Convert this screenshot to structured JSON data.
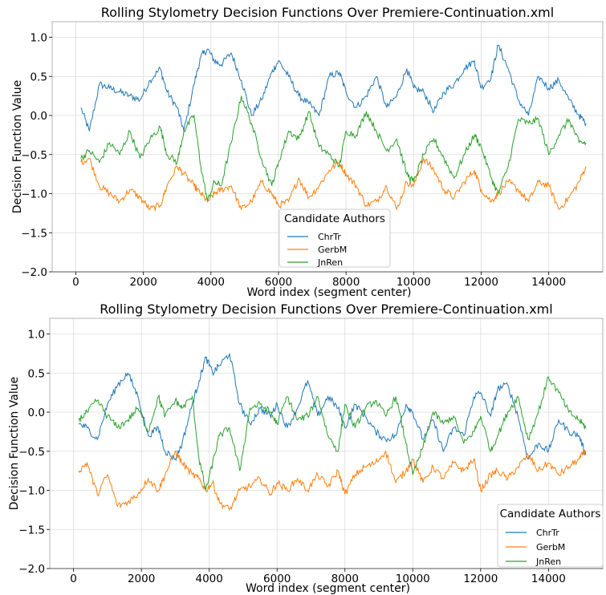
{
  "chart_data": [
    {
      "type": "line",
      "title": "Rolling Stylometry Decision Functions Over Premiere-Continuation.xml",
      "xlabel": "Word index (segment center)",
      "ylabel": "Decision Function Value",
      "xlim": [
        -700,
        15600
      ],
      "ylim": [
        -2.0,
        1.2
      ],
      "xticks": [
        0,
        2000,
        4000,
        6000,
        8000,
        10000,
        12000,
        14000
      ],
      "yticks": [
        -2.0,
        -1.5,
        -1.0,
        -0.5,
        0.0,
        0.5,
        1.0
      ],
      "xticklabels": [
        "0",
        "2000",
        "4000",
        "6000",
        "8000",
        "10000",
        "12000",
        "14000"
      ],
      "yticklabels": [
        "−2.0",
        "−1.5",
        "−1.0",
        "−0.5",
        "0.0",
        "0.5",
        "1.0"
      ],
      "grid": true,
      "legend": {
        "title": "Candidate Authors",
        "placement": "lower-center"
      },
      "series": [
        {
          "name": "ChrTr",
          "color": "#1f77b4",
          "x": [
            150,
            400,
            700,
            1000,
            1300,
            1600,
            1900,
            2200,
            2500,
            2700,
            3000,
            3200,
            3500,
            3700,
            3900,
            4100,
            4300,
            4600,
            4900,
            5200,
            5500,
            5800,
            6000,
            6300,
            6600,
            6900,
            7200,
            7500,
            7800,
            8000,
            8300,
            8600,
            8900,
            9200,
            9500,
            9800,
            10000,
            10300,
            10600,
            10900,
            11200,
            11500,
            11800,
            12000,
            12300,
            12500,
            12800,
            13100,
            13400,
            13700,
            14000,
            14300,
            14600,
            14900,
            15100
          ],
          "y": [
            0.1,
            -0.2,
            0.4,
            0.35,
            0.3,
            0.25,
            0.2,
            0.45,
            0.6,
            0.3,
            0.1,
            -0.2,
            0.4,
            0.75,
            0.85,
            0.7,
            0.65,
            0.8,
            0.45,
            0.0,
            0.2,
            0.55,
            0.7,
            0.5,
            0.25,
            0.15,
            0.0,
            0.5,
            0.55,
            0.3,
            0.1,
            0.25,
            0.5,
            0.1,
            0.25,
            0.6,
            0.35,
            0.3,
            0.05,
            0.3,
            0.4,
            0.6,
            0.7,
            0.35,
            0.5,
            0.9,
            0.6,
            0.2,
            0.0,
            0.5,
            0.35,
            0.45,
            0.2,
            0.0,
            -0.1
          ]
        },
        {
          "name": "GerbM",
          "color": "#ff7f0e",
          "x": [
            150,
            400,
            700,
            1000,
            1300,
            1600,
            1900,
            2200,
            2500,
            2700,
            3000,
            3200,
            3500,
            3700,
            3900,
            4100,
            4300,
            4600,
            4900,
            5200,
            5500,
            5800,
            6000,
            6300,
            6600,
            6900,
            7200,
            7500,
            7800,
            8000,
            8300,
            8600,
            8900,
            9200,
            9500,
            9800,
            10000,
            10300,
            10600,
            10900,
            11200,
            11500,
            11800,
            12000,
            12300,
            12500,
            12800,
            13100,
            13400,
            13700,
            14000,
            14300,
            14600,
            14900,
            15100
          ],
          "y": [
            -0.6,
            -0.55,
            -0.9,
            -1.0,
            -1.1,
            -0.95,
            -1.05,
            -1.2,
            -1.15,
            -0.9,
            -0.65,
            -0.75,
            -0.9,
            -1.0,
            -1.1,
            -1.0,
            -0.95,
            -0.9,
            -1.2,
            -1.1,
            -0.85,
            -1.0,
            -1.15,
            -1.1,
            -0.8,
            -1.05,
            -0.9,
            -0.7,
            -0.6,
            -0.75,
            -0.9,
            -1.15,
            -1.1,
            -0.9,
            -1.2,
            -0.85,
            -0.9,
            -0.55,
            -0.7,
            -0.95,
            -1.05,
            -0.85,
            -0.7,
            -0.95,
            -1.1,
            -1.0,
            -0.85,
            -0.95,
            -1.1,
            -0.85,
            -0.9,
            -1.2,
            -1.05,
            -0.85,
            -0.65
          ]
        },
        {
          "name": "JnRen",
          "color": "#2ca02c",
          "x": [
            150,
            400,
            700,
            1000,
            1300,
            1600,
            1900,
            2200,
            2500,
            2700,
            3000,
            3200,
            3500,
            3700,
            3900,
            4100,
            4300,
            4600,
            4900,
            5200,
            5500,
            5800,
            6000,
            6300,
            6600,
            6900,
            7200,
            7500,
            7800,
            8000,
            8300,
            8600,
            8900,
            9200,
            9500,
            9800,
            10000,
            10300,
            10600,
            10900,
            11200,
            11500,
            11800,
            12000,
            12300,
            12500,
            12800,
            13100,
            13400,
            13700,
            14000,
            14300,
            14600,
            14900,
            15100
          ],
          "y": [
            -0.55,
            -0.45,
            -0.6,
            -0.35,
            -0.5,
            -0.2,
            -0.55,
            -0.3,
            -0.15,
            -0.5,
            -0.6,
            -0.2,
            0.0,
            -0.65,
            -1.1,
            -0.85,
            -0.9,
            -0.35,
            0.25,
            -0.1,
            -0.55,
            -0.9,
            -0.6,
            -0.2,
            -0.3,
            0.05,
            -0.4,
            -0.5,
            -0.65,
            -0.2,
            -0.25,
            0.05,
            -0.2,
            -0.45,
            -0.3,
            -0.75,
            -0.85,
            -0.5,
            -0.3,
            -0.55,
            -0.8,
            -0.5,
            -0.25,
            -0.4,
            -0.8,
            -1.0,
            -0.65,
            -0.05,
            -0.1,
            -0.05,
            -0.5,
            -0.25,
            -0.05,
            -0.35,
            -0.35
          ]
        }
      ]
    },
    {
      "type": "line",
      "title": "Rolling Stylometry Decision Functions Over Premiere-Continuation.xml",
      "xlabel": "Word index (segment center)",
      "ylabel": "Decision Function Value",
      "xlim": [
        -700,
        15600
      ],
      "ylim": [
        -2.0,
        1.2
      ],
      "xticks": [
        0,
        2000,
        4000,
        6000,
        8000,
        10000,
        12000,
        14000
      ],
      "yticks": [
        -2.0,
        -1.5,
        -1.0,
        -0.5,
        0.0,
        0.5,
        1.0
      ],
      "xticklabels": [
        "0",
        "2000",
        "4000",
        "6000",
        "8000",
        "10000",
        "12000",
        "14000"
      ],
      "yticklabels": [
        "−2.0",
        "−1.5",
        "−1.0",
        "−0.5",
        "0.0",
        "0.5",
        "1.0"
      ],
      "grid": true,
      "legend": {
        "title": "Candidate Authors",
        "placement": "lower-right"
      },
      "series": [
        {
          "name": "ChrTr",
          "color": "#1f77b4",
          "x": [
            150,
            400,
            700,
            1000,
            1300,
            1600,
            1900,
            2200,
            2500,
            2700,
            3000,
            3200,
            3500,
            3700,
            3900,
            4100,
            4300,
            4600,
            4900,
            5200,
            5500,
            5800,
            6000,
            6300,
            6600,
            6900,
            7200,
            7500,
            7800,
            8000,
            8300,
            8600,
            8900,
            9200,
            9500,
            9800,
            10000,
            10300,
            10600,
            10900,
            11200,
            11500,
            11800,
            12000,
            12300,
            12500,
            12800,
            13100,
            13400,
            13700,
            14000,
            14300,
            14600,
            14900,
            15100
          ],
          "y": [
            -0.15,
            -0.2,
            -0.35,
            0.1,
            0.35,
            0.5,
            0.2,
            -0.3,
            -0.2,
            -0.5,
            -0.6,
            -0.4,
            0.1,
            0.4,
            0.7,
            0.5,
            0.6,
            0.75,
            0.1,
            -0.15,
            0.05,
            -0.05,
            0.1,
            -0.2,
            0.05,
            0.4,
            -0.05,
            0.2,
            0.05,
            -0.2,
            0.1,
            -0.05,
            -0.25,
            -0.35,
            -0.3,
            0.1,
            0.0,
            -0.35,
            -0.1,
            -0.5,
            -0.2,
            -0.3,
            0.2,
            0.25,
            -0.05,
            0.3,
            0.35,
            -0.05,
            -0.6,
            -0.4,
            -0.5,
            -0.1,
            -0.25,
            -0.3,
            -0.55
          ]
        },
        {
          "name": "GerbM",
          "color": "#ff7f0e",
          "x": [
            150,
            400,
            700,
            1000,
            1300,
            1600,
            1900,
            2200,
            2500,
            2700,
            3000,
            3200,
            3500,
            3700,
            3900,
            4100,
            4300,
            4600,
            4900,
            5200,
            5500,
            5800,
            6000,
            6300,
            6600,
            6900,
            7200,
            7500,
            7800,
            8000,
            8300,
            8600,
            8900,
            9200,
            9500,
            9800,
            10000,
            10300,
            10600,
            10900,
            11200,
            11500,
            11800,
            12000,
            12300,
            12500,
            12800,
            13100,
            13400,
            13700,
            14000,
            14300,
            14600,
            14900,
            15100
          ],
          "y": [
            -0.75,
            -0.65,
            -1.05,
            -0.8,
            -1.2,
            -1.15,
            -1.05,
            -0.85,
            -1.0,
            -0.8,
            -0.5,
            -0.65,
            -0.8,
            -0.85,
            -1.0,
            -0.9,
            -1.15,
            -1.25,
            -1.0,
            -0.95,
            -0.85,
            -1.05,
            -0.9,
            -1.0,
            -0.85,
            -1.0,
            -0.8,
            -0.95,
            -0.75,
            -1.05,
            -0.8,
            -0.7,
            -0.65,
            -0.5,
            -0.9,
            -0.75,
            -0.6,
            -0.9,
            -0.7,
            -0.85,
            -0.65,
            -0.75,
            -0.6,
            -1.0,
            -0.8,
            -0.75,
            -0.85,
            -0.7,
            -0.55,
            -0.75,
            -0.65,
            -0.8,
            -0.7,
            -0.6,
            -0.5
          ]
        },
        {
          "name": "JnRen",
          "color": "#2ca02c",
          "x": [
            150,
            400,
            700,
            1000,
            1300,
            1600,
            1900,
            2200,
            2500,
            2700,
            3000,
            3200,
            3500,
            3700,
            3900,
            4100,
            4300,
            4600,
            4900,
            5200,
            5500,
            5800,
            6000,
            6300,
            6600,
            6900,
            7200,
            7500,
            7800,
            8000,
            8300,
            8600,
            8900,
            9200,
            9500,
            9800,
            10000,
            10300,
            10600,
            10900,
            11200,
            11500,
            11800,
            12000,
            12300,
            12500,
            12800,
            13100,
            13400,
            13700,
            14000,
            14300,
            14600,
            14900,
            15100
          ],
          "y": [
            -0.1,
            0.0,
            0.15,
            -0.05,
            -0.2,
            -0.1,
            0.05,
            -0.25,
            0.2,
            -0.05,
            0.15,
            0.05,
            0.2,
            -0.6,
            -1.0,
            -0.65,
            -0.3,
            -0.2,
            -0.75,
            0.05,
            0.1,
            0.0,
            -0.15,
            0.2,
            -0.1,
            -0.05,
            0.2,
            -0.3,
            -0.5,
            0.1,
            -0.2,
            0.05,
            0.15,
            -0.05,
            0.2,
            -0.4,
            -0.8,
            -0.45,
            0.0,
            -0.15,
            -0.05,
            -0.4,
            -0.25,
            -0.05,
            -0.5,
            -0.3,
            0.0,
            0.2,
            -0.35,
            0.0,
            0.45,
            0.25,
            0.0,
            -0.1,
            -0.2
          ]
        }
      ]
    }
  ]
}
